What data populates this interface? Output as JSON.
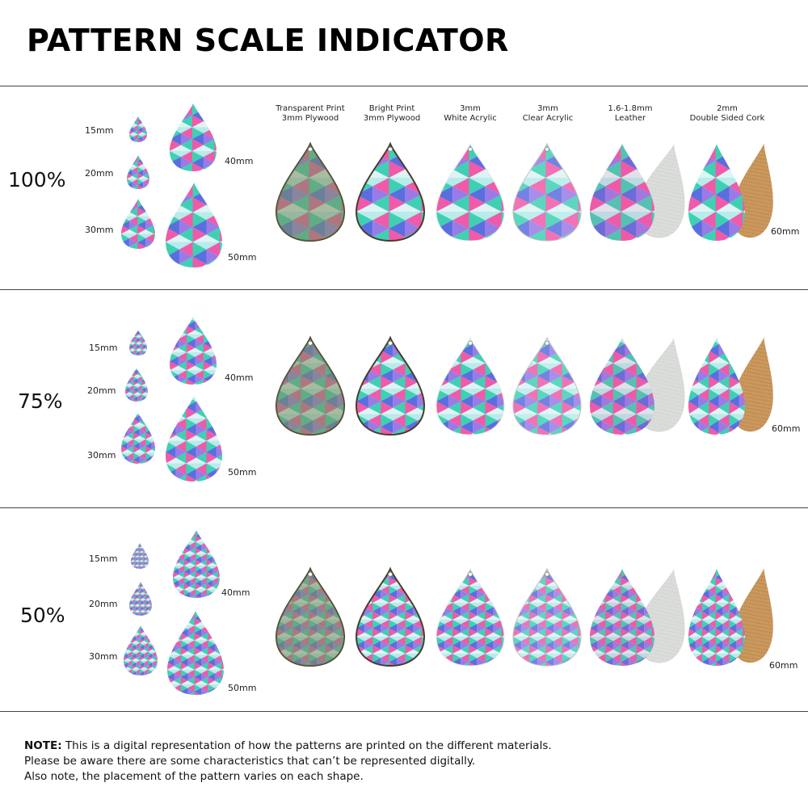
{
  "title": "PATTERN SCALE INDICATOR",
  "materials": [
    {
      "line1": "Transparent Print",
      "line2": "3mm Plywood"
    },
    {
      "line1": "Bright Print",
      "line2": "3mm Plywood"
    },
    {
      "line1": "3mm",
      "line2": "White Acrylic"
    },
    {
      "line1": "3mm",
      "line2": "Clear Acrylic"
    },
    {
      "line1": "1.6-1.8mm",
      "line2": "Leather"
    },
    {
      "line1": "2mm",
      "line2": "Double Sided Cork"
    }
  ],
  "sections": [
    {
      "scale": "100%",
      "sizes": [
        "15mm",
        "20mm",
        "30mm",
        "40mm",
        "50mm"
      ],
      "preview_size": "60mm"
    },
    {
      "scale": "75%",
      "sizes": [
        "15mm",
        "20mm",
        "30mm",
        "40mm",
        "50mm"
      ],
      "preview_size": "60mm"
    },
    {
      "scale": "50%",
      "sizes": [
        "15mm",
        "20mm",
        "30mm",
        "40mm",
        "50mm"
      ],
      "preview_size": "60mm"
    }
  ],
  "note": {
    "label": "NOTE:",
    "line1": " This is a digital representation of how the patterns are printed on the different materials.",
    "line2": "Please be aware there are some characteristics that can’t be represented digitally.",
    "line3": "Also note, the placement of the pattern varies on each shape."
  },
  "colors": {
    "teal": "#3fd0b4",
    "pink": "#f05aa8",
    "blue": "#5a6ee0",
    "purple": "#9a7be6",
    "light": "#dff3f4",
    "wood": "#5f8f5a",
    "leather_back": "#d9dcd8",
    "cork_back": "#c8955a"
  }
}
